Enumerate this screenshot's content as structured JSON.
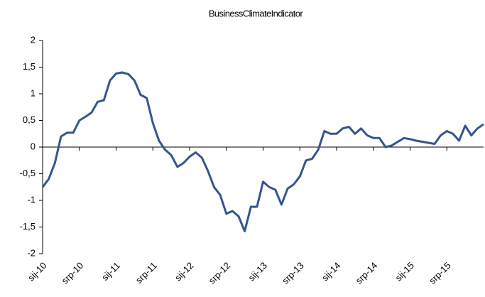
{
  "chart_data": {
    "type": "line",
    "title": "BusinessClimateIndicator",
    "categories": [
      "sij-10",
      null,
      null,
      null,
      null,
      null,
      "srp-10",
      null,
      null,
      null,
      null,
      null,
      "sij-11",
      null,
      null,
      null,
      null,
      null,
      "srp-11",
      null,
      null,
      null,
      null,
      null,
      "sij-12",
      null,
      null,
      null,
      null,
      null,
      "srp-12",
      null,
      null,
      null,
      null,
      null,
      "sij-13",
      null,
      null,
      null,
      null,
      null,
      "srp-13",
      null,
      null,
      null,
      null,
      null,
      "sij-14",
      null,
      null,
      null,
      null,
      null,
      "srp-14",
      null,
      null,
      null,
      null,
      null,
      "sij-15",
      null,
      null,
      null,
      null,
      null,
      "srp-15",
      null,
      null,
      null,
      null,
      null,
      null
    ],
    "series": [
      {
        "name": "BusinessClimateIndicator",
        "color": "#35558f",
        "values": [
          -0.75,
          -0.6,
          -0.3,
          0.2,
          0.27,
          0.27,
          0.5,
          0.57,
          0.65,
          0.85,
          0.88,
          1.25,
          1.38,
          1.4,
          1.37,
          1.25,
          0.98,
          0.92,
          0.45,
          0.12,
          -0.05,
          -0.15,
          -0.37,
          -0.3,
          -0.18,
          -0.1,
          -0.2,
          -0.45,
          -0.75,
          -0.9,
          -1.25,
          -1.2,
          -1.3,
          -1.58,
          -1.12,
          -1.12,
          -0.65,
          -0.75,
          -0.8,
          -1.08,
          -0.78,
          -0.7,
          -0.55,
          -0.25,
          -0.22,
          -0.05,
          0.3,
          0.25,
          0.25,
          0.35,
          0.38,
          0.25,
          0.35,
          0.22,
          0.17,
          0.17,
          0.0,
          0.03,
          0.1,
          0.17,
          0.15,
          0.12,
          0.1,
          0.08,
          0.06,
          0.22,
          0.3,
          0.25,
          0.12,
          0.4,
          0.22,
          0.35,
          0.43
        ]
      }
    ],
    "ylim": [
      -2,
      2
    ],
    "yticks": [
      -2,
      {
        "value": -1.5,
        "label": "-1,5"
      },
      -1,
      {
        "value": -0.5,
        "label": "-0,5"
      },
      0,
      {
        "value": 0.5,
        "label": "0,5"
      },
      1,
      {
        "value": 1.5,
        "label": "1,5"
      },
      2
    ],
    "grid": false
  }
}
